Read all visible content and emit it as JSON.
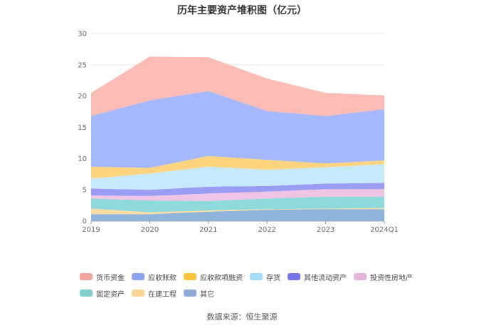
{
  "chart_data": {
    "type": "area",
    "stacked": true,
    "title": "历年主要资产堆积图（亿元）",
    "categories": [
      "2019",
      "2020",
      "2021",
      "2022",
      "2023",
      "2024Q1"
    ],
    "ylim": [
      0,
      30
    ],
    "yticks": [
      0,
      5,
      10,
      15,
      20,
      25,
      30
    ],
    "grid": true,
    "legend_position": "bottom",
    "series": [
      {
        "name": "其它",
        "color": "#8fb4dc",
        "values": [
          1.1,
          1.1,
          1.5,
          1.8,
          1.9,
          1.9
        ]
      },
      {
        "name": "在建工程",
        "color": "#fddca0",
        "values": [
          0.9,
          0.3,
          0.2,
          0.1,
          0.1,
          0.2
        ]
      },
      {
        "name": "固定资产",
        "color": "#8ed9d9",
        "values": [
          1.6,
          1.9,
          1.5,
          1.7,
          1.9,
          1.8
        ]
      },
      {
        "name": "投资性房地产",
        "color": "#efc4e4",
        "values": [
          0.5,
          0.7,
          1.2,
          1.1,
          1.2,
          1.2
        ]
      },
      {
        "name": "其他流动资产",
        "color": "#9b9cf3",
        "values": [
          1.1,
          1.0,
          1.1,
          0.9,
          0.9,
          1.0
        ]
      },
      {
        "name": "存货",
        "color": "#c6eafc",
        "values": [
          1.6,
          2.6,
          3.2,
          2.6,
          2.6,
          3.0
        ]
      },
      {
        "name": "应收款项融资",
        "color": "#fed57e",
        "values": [
          1.9,
          0.9,
          1.7,
          1.6,
          0.6,
          0.6
        ]
      },
      {
        "name": "应收账款",
        "color": "#a4b8fb",
        "values": [
          8.1,
          10.8,
          10.4,
          7.8,
          7.6,
          8.2
        ]
      },
      {
        "name": "货币资金",
        "color": "#fbbcb6",
        "values": [
          3.7,
          7.0,
          5.4,
          5.2,
          3.7,
          2.2
        ]
      }
    ],
    "legend_order": [
      "货币资金",
      "应收账款",
      "应收款项融资",
      "存货",
      "其他流动资产",
      "投资性房地产",
      "固定资产",
      "在建工程",
      "其它"
    ],
    "legend_colors": {
      "货币资金": "#f4a49c",
      "应收账款": "#8ba3f3",
      "应收款项融资": "#fbc43c",
      "存货": "#a4dcf8",
      "其他流动资产": "#7474ec",
      "投资性房地产": "#e7b4dc",
      "固定资产": "#80cfcf",
      "在建工程": "#fcd494",
      "其它": "#8fabd8"
    }
  },
  "source_note": "数据来源：恒生聚源"
}
